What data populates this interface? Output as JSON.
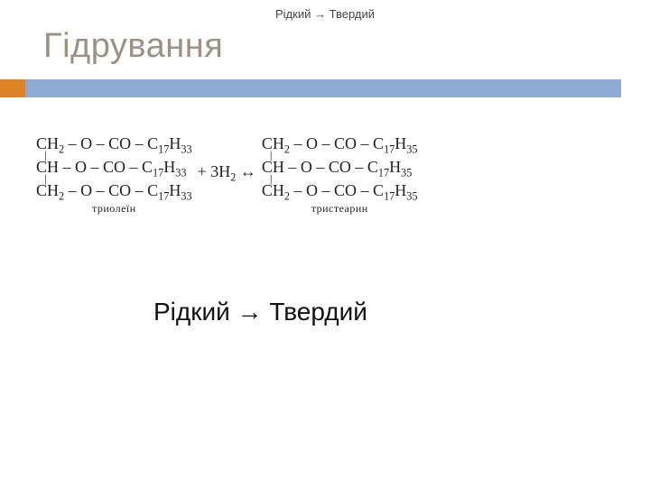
{
  "header_caption": "Рідкий → Твердий",
  "title": {
    "text": "Гідрування",
    "color": "#9b9284"
  },
  "accent": {
    "color": "#de8326"
  },
  "underline": {
    "color": "#8faad4"
  },
  "equation": {
    "left_mol": {
      "line1_html": "CH<sub>2</sub> – O – CO – C<sub>17</sub>H<sub>33</sub>",
      "line2_html": "CH – O – CO – C<sub>17</sub>H<sub>33</sub>",
      "line3_html": "CH<sub>2</sub> – O – CO – C<sub>17</sub>H<sub>33</sub>",
      "caption": "триолеїн"
    },
    "operator_html": "+ 3H<sub>2</sub> ↔",
    "right_mol": {
      "line1_html": "CH<sub>2</sub> – O – CO – C<sub>17</sub>H<sub>35</sub>",
      "line2_html": "CH – O – CO – C<sub>17</sub>H<sub>35</sub>",
      "line3_html": "CH<sub>2</sub> – O – CO – C<sub>17</sub>H<sub>35</sub>",
      "caption": "тристеарин"
    },
    "bond_symbol": "|"
  },
  "state_change": "Рідкий → Твердий"
}
